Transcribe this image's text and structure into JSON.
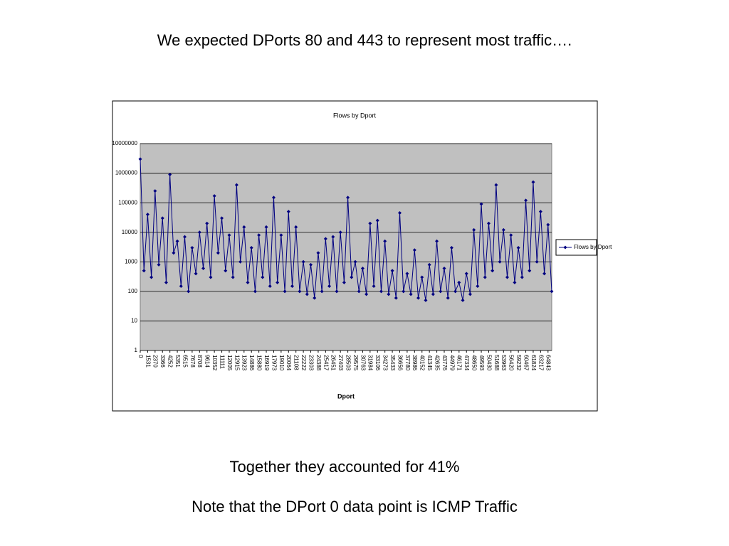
{
  "heading": "We expected DPorts 80 and 443 to represent most traffic….",
  "notes": [
    "Together they accounted for 41%",
    "Note that the DPort 0 data point is ICMP Traffic"
  ],
  "chart_data": {
    "type": "line",
    "title": "Flows by Dport",
    "x_label": "Dport",
    "categories": [
      "0",
      null,
      "1531",
      null,
      "2370",
      null,
      "3366",
      null,
      "4252",
      null,
      "5351",
      null,
      "6515",
      null,
      "7678",
      null,
      "8708",
      null,
      "9614",
      null,
      "10352",
      null,
      "11111",
      null,
      "12005",
      null,
      "12915",
      null,
      "13923",
      null,
      "14886",
      null,
      "15880",
      null,
      "16919",
      null,
      "17973",
      null,
      "19010",
      null,
      "20064",
      null,
      "21108",
      null,
      "22222",
      null,
      "23303",
      null,
      "24388",
      null,
      "25417",
      null,
      "26451",
      null,
      "27403",
      null,
      "28503",
      null,
      "29575",
      null,
      "30763",
      null,
      "31984",
      null,
      "33106",
      null,
      "34273",
      null,
      "35433",
      null,
      "36656",
      null,
      "37780",
      null,
      "38986",
      null,
      "40152",
      null,
      "41345",
      null,
      "42635",
      null,
      "43776",
      null,
      "44979",
      null,
      "46171",
      null,
      "47334",
      null,
      "48650",
      null,
      "49593",
      null,
      "50430",
      null,
      "51688",
      null,
      "53963",
      null,
      "56420",
      null,
      "59232",
      null,
      "60467",
      null,
      "61824",
      null,
      "63217",
      null,
      "64843",
      null
    ],
    "series": [
      {
        "name": "Flows by Dport",
        "color": "#000080",
        "values": [
          3000000,
          500,
          40000,
          300,
          250000,
          800,
          30000,
          200,
          900000,
          2000,
          5000,
          150,
          7000,
          100,
          3000,
          400,
          10000,
          600,
          20000,
          300,
          170000,
          2000,
          30000,
          500,
          8000,
          300,
          400000,
          1000,
          15000,
          200,
          3000,
          100,
          8000,
          300,
          15000,
          150,
          150000,
          200,
          8000,
          100,
          50000,
          150,
          15000,
          100,
          1000,
          80,
          800,
          60,
          2000,
          100,
          6000,
          150,
          7000,
          100,
          10000,
          200,
          150000,
          300,
          1000,
          100,
          600,
          80,
          20000,
          150,
          25000,
          100,
          5000,
          80,
          500,
          60,
          45000,
          100,
          400,
          80,
          2500,
          60,
          300,
          50,
          800,
          80,
          5000,
          100,
          600,
          60,
          3000,
          100,
          200,
          50,
          400,
          80,
          12000,
          150,
          90000,
          300,
          20000,
          500,
          400000,
          1000,
          12000,
          300,
          8000,
          200,
          3000,
          300,
          120000,
          500,
          500000,
          1000,
          50000,
          400,
          18000,
          100
        ]
      }
    ],
    "ylim": [
      1,
      10000000
    ],
    "yticks": [
      1,
      10,
      100,
      1000,
      10000,
      100000,
      1000000,
      10000000
    ],
    "log_y": true,
    "grid": true,
    "legend": "right"
  }
}
